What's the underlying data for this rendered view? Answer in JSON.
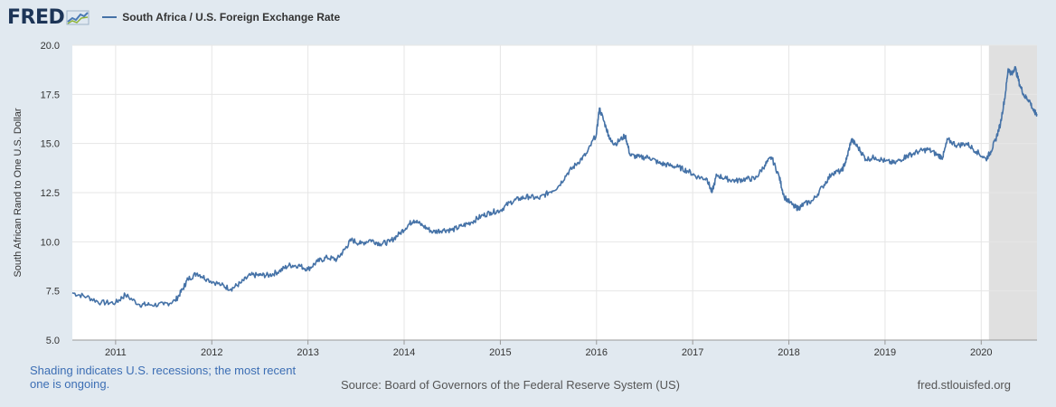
{
  "header": {
    "logo_text": "FRED",
    "legend_label": "South Africa / U.S. Foreign Exchange Rate"
  },
  "footer": {
    "shading_note": "Shading indicates U.S. recessions; the most recent one is ongoing.",
    "source": "Source: Board of Governors of the Federal Reserve System (US)",
    "url": "fred.stlouisfed.org"
  },
  "colors": {
    "line": "#4572a7",
    "recession": "#e0e0e0",
    "background": "#e1e9f0",
    "plot": "#ffffff"
  },
  "chart_data": {
    "type": "line",
    "title": "South Africa / U.S. Foreign Exchange Rate",
    "xlabel": "",
    "ylabel": "South African Rand to One U.S. Dollar",
    "xlim": [
      2010.55,
      2020.58
    ],
    "ylim": [
      5.0,
      20.0
    ],
    "y_ticks": [
      "5.0",
      "7.5",
      "10.0",
      "12.5",
      "15.0",
      "17.5",
      "20.0"
    ],
    "x_ticks": [
      "2011",
      "2012",
      "2013",
      "2014",
      "2015",
      "2016",
      "2017",
      "2018",
      "2019",
      "2020"
    ],
    "grid": true,
    "recession": {
      "start": 2020.08,
      "end": 2020.58
    },
    "series": [
      {
        "name": "South Africa / U.S. Foreign Exchange Rate",
        "x": [
          2010.55,
          2010.7,
          2010.85,
          2011.0,
          2011.1,
          2011.25,
          2011.35,
          2011.5,
          2011.62,
          2011.7,
          2011.75,
          2011.85,
          2011.95,
          2012.1,
          2012.2,
          2012.3,
          2012.4,
          2012.5,
          2012.6,
          2012.7,
          2012.8,
          2012.9,
          2013.0,
          2013.1,
          2013.2,
          2013.3,
          2013.38,
          2013.45,
          2013.55,
          2013.65,
          2013.75,
          2013.85,
          2013.95,
          2014.05,
          2014.1,
          2014.2,
          2014.3,
          2014.4,
          2014.5,
          2014.6,
          2014.7,
          2014.8,
          2014.9,
          2015.0,
          2015.1,
          2015.2,
          2015.3,
          2015.4,
          2015.5,
          2015.6,
          2015.7,
          2015.8,
          2015.9,
          2016.0,
          2016.03,
          2016.1,
          2016.15,
          2016.2,
          2016.3,
          2016.35,
          2016.45,
          2016.55,
          2016.65,
          2016.75,
          2016.85,
          2016.95,
          2017.05,
          2017.15,
          2017.2,
          2017.25,
          2017.35,
          2017.45,
          2017.55,
          2017.65,
          2017.75,
          2017.82,
          2017.9,
          2017.95,
          2018.05,
          2018.1,
          2018.15,
          2018.25,
          2018.35,
          2018.45,
          2018.55,
          2018.6,
          2018.65,
          2018.72,
          2018.8,
          2018.9,
          2019.0,
          2019.1,
          2019.2,
          2019.25,
          2019.35,
          2019.45,
          2019.55,
          2019.6,
          2019.65,
          2019.75,
          2019.85,
          2019.95,
          2020.05,
          2020.1,
          2020.15,
          2020.2,
          2020.25,
          2020.28,
          2020.32,
          2020.35,
          2020.4,
          2020.45,
          2020.5,
          2020.55,
          2020.58
        ],
        "values": [
          7.4,
          7.2,
          6.9,
          6.9,
          7.3,
          6.8,
          6.8,
          6.8,
          7.0,
          7.6,
          8.1,
          8.4,
          8.1,
          7.8,
          7.6,
          7.9,
          8.3,
          8.3,
          8.3,
          8.5,
          8.8,
          8.8,
          8.6,
          9.0,
          9.2,
          9.1,
          9.6,
          10.1,
          9.9,
          10.1,
          9.9,
          10.0,
          10.4,
          10.9,
          11.1,
          10.8,
          10.5,
          10.6,
          10.6,
          10.8,
          11.0,
          11.3,
          11.5,
          11.6,
          12.0,
          12.2,
          12.3,
          12.2,
          12.5,
          12.8,
          13.5,
          14.0,
          14.5,
          15.5,
          16.8,
          15.8,
          15.1,
          15.0,
          15.4,
          14.4,
          14.3,
          14.3,
          14.0,
          13.9,
          13.8,
          13.6,
          13.3,
          13.2,
          12.5,
          13.4,
          13.2,
          13.1,
          13.2,
          13.2,
          13.9,
          14.3,
          13.3,
          12.3,
          11.8,
          11.7,
          11.9,
          12.1,
          12.8,
          13.5,
          13.6,
          14.2,
          15.2,
          14.8,
          14.2,
          14.3,
          14.1,
          14.0,
          14.3,
          14.4,
          14.6,
          14.7,
          14.4,
          14.3,
          15.2,
          14.9,
          15.0,
          14.6,
          14.2,
          14.6,
          15.2,
          16.0,
          17.5,
          18.8,
          18.5,
          18.9,
          18.0,
          17.4,
          17.2,
          16.6,
          16.5
        ]
      }
    ]
  }
}
